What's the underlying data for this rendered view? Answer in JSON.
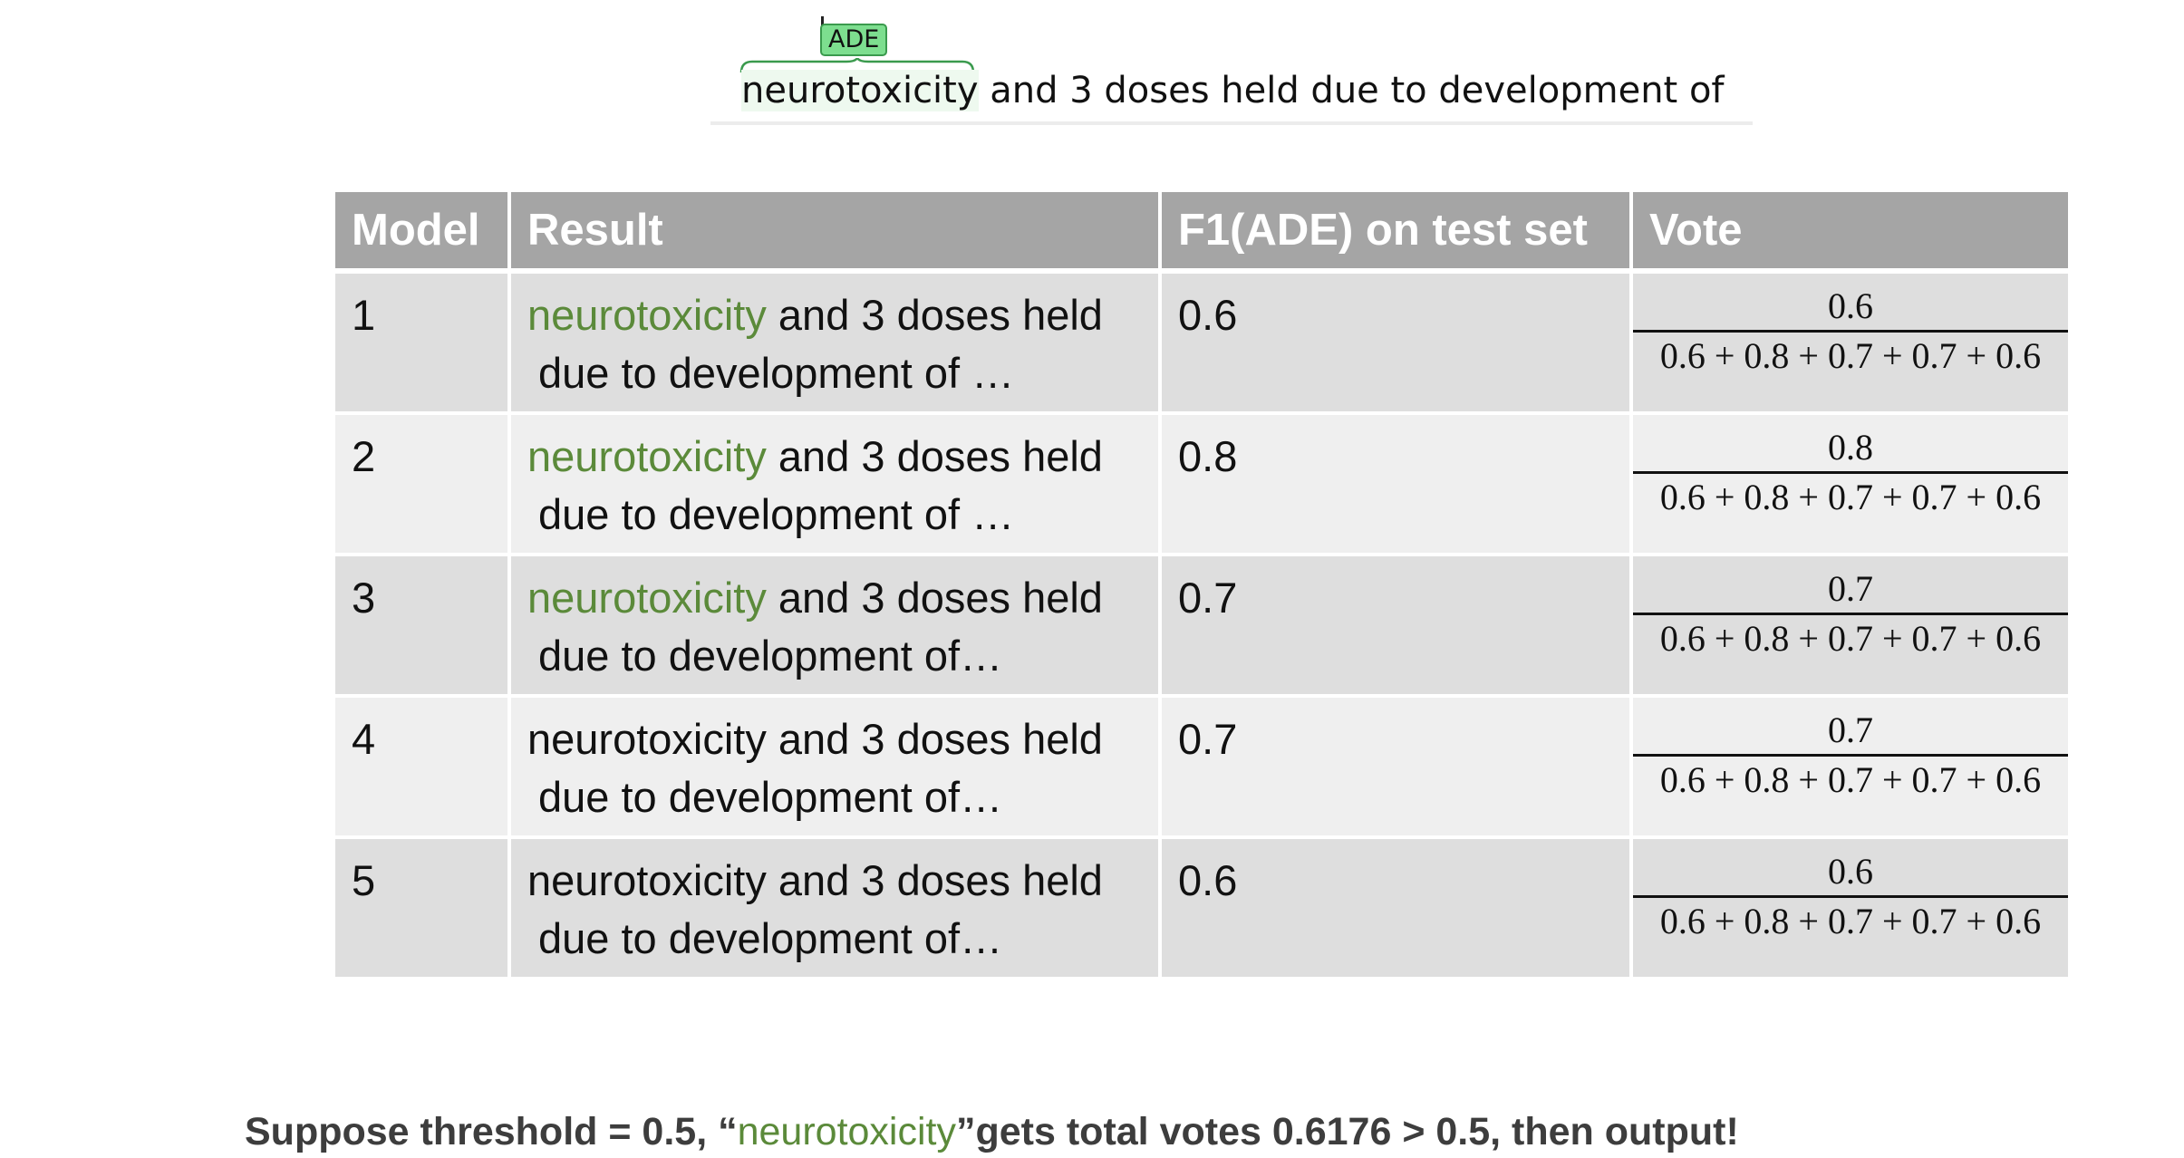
{
  "snippet": {
    "entity_label": "ADE",
    "highlighted_term": "neurotoxicity",
    "rest_text": " and 3 doses held due to development of"
  },
  "table": {
    "headers": [
      "Model",
      "Result",
      "F1(ADE) on test set",
      "Vote"
    ],
    "vote_denominator": "0.6 + 0.8 + 0.7 + 0.7 + 0.6",
    "rows": [
      {
        "model": "1",
        "term": "neurotoxicity",
        "term_highlighted": true,
        "line1_rest": " and 3 doses held",
        "line2": "due to development of …",
        "f1": "0.6",
        "vote_numerator": "0.6"
      },
      {
        "model": "2",
        "term": "neurotoxicity",
        "term_highlighted": true,
        "line1_rest": " and 3 doses held",
        "line2": "due to development of …",
        "f1": "0.8",
        "vote_numerator": "0.8"
      },
      {
        "model": "3",
        "term": "neurotoxicity",
        "term_highlighted": true,
        "line1_rest": " and 3 doses held",
        "line2": "due to development of…",
        "f1": "0.7",
        "vote_numerator": "0.7"
      },
      {
        "model": "4",
        "term": "neurotoxicity",
        "term_highlighted": false,
        "line1_rest": " and 3 doses held",
        "line2": "due to development of…",
        "f1": "0.7",
        "vote_numerator": "0.7"
      },
      {
        "model": "5",
        "term": "neurotoxicity",
        "term_highlighted": false,
        "line1_rest": " and 3 doses held",
        "line2": "due to development of…",
        "f1": "0.6",
        "vote_numerator": "0.6"
      }
    ]
  },
  "conclusion": {
    "prefix": "Suppose threshold = 0.5, “",
    "term": "neurotoxicity",
    "suffix": "”gets total votes 0.6176 > 0.5, then output!"
  },
  "colors": {
    "highlight_green": "#5b8a3a",
    "header_gray": "#a5a5a5",
    "row_dark": "#dedede",
    "row_light": "#efefef",
    "label_green": "#7dde8f"
  }
}
